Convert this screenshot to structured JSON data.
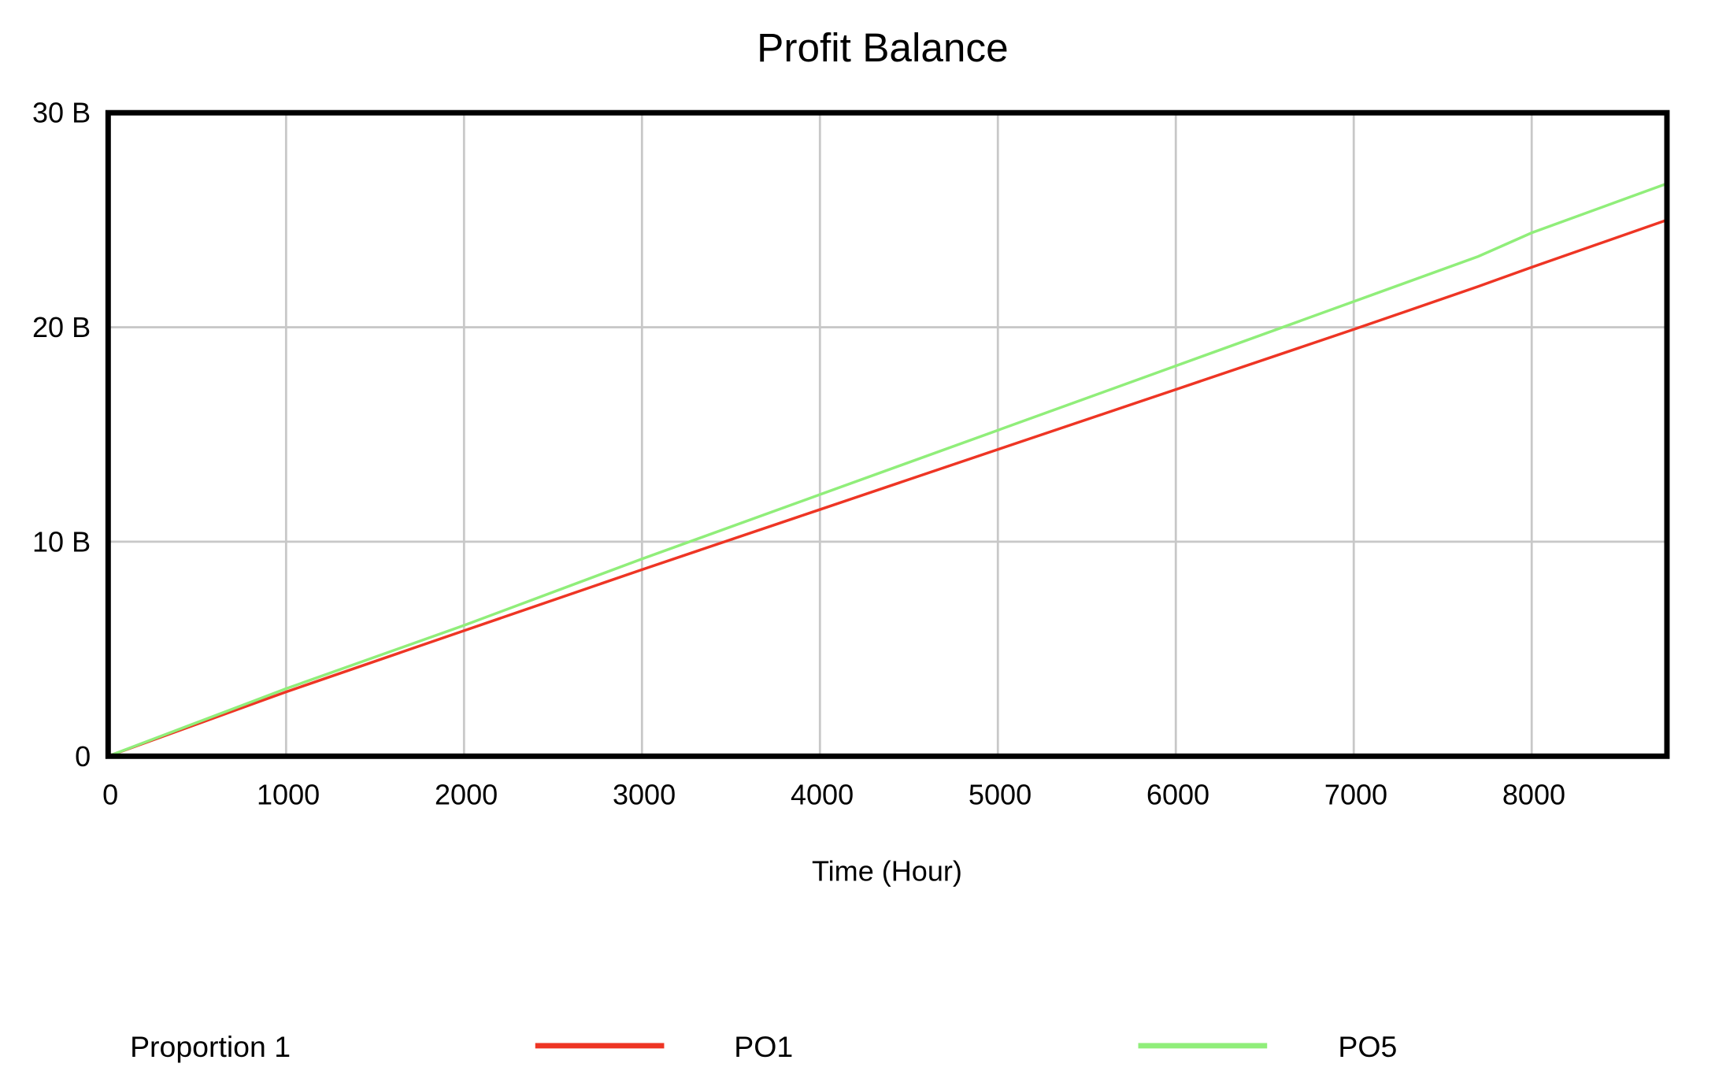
{
  "chart_data": {
    "type": "line",
    "title": "Profit Balance",
    "xlabel": "Time (Hour)",
    "ylabel": "",
    "xlim": [
      0,
      8760
    ],
    "ylim": [
      0,
      30
    ],
    "x_ticks": [
      "0",
      "1000",
      "2000",
      "3000",
      "4000",
      "5000",
      "6000",
      "7000",
      "8000"
    ],
    "y_ticks": [
      "0",
      "10 B",
      "20 B",
      "30 B"
    ],
    "y_unit": "billions",
    "grid": true,
    "legend_placement": "bottom",
    "legend_title": "Proportion 1",
    "series": [
      {
        "name": "PO1",
        "color": "#ee3524",
        "x": [
          0,
          1000,
          2000,
          3000,
          4000,
          5000,
          6000,
          7000,
          7700,
          8000,
          8760
        ],
        "y": [
          0,
          3.0,
          5.85,
          8.7,
          11.5,
          14.3,
          17.1,
          19.9,
          21.9,
          22.8,
          25.0
        ]
      },
      {
        "name": "PO5",
        "color": "#90ee7a",
        "x": [
          0,
          1000,
          2000,
          3000,
          4000,
          5000,
          6000,
          7000,
          7700,
          8000,
          8760
        ],
        "y": [
          0,
          3.15,
          6.1,
          9.2,
          12.2,
          15.2,
          18.2,
          21.2,
          23.3,
          24.4,
          26.7
        ]
      }
    ]
  }
}
